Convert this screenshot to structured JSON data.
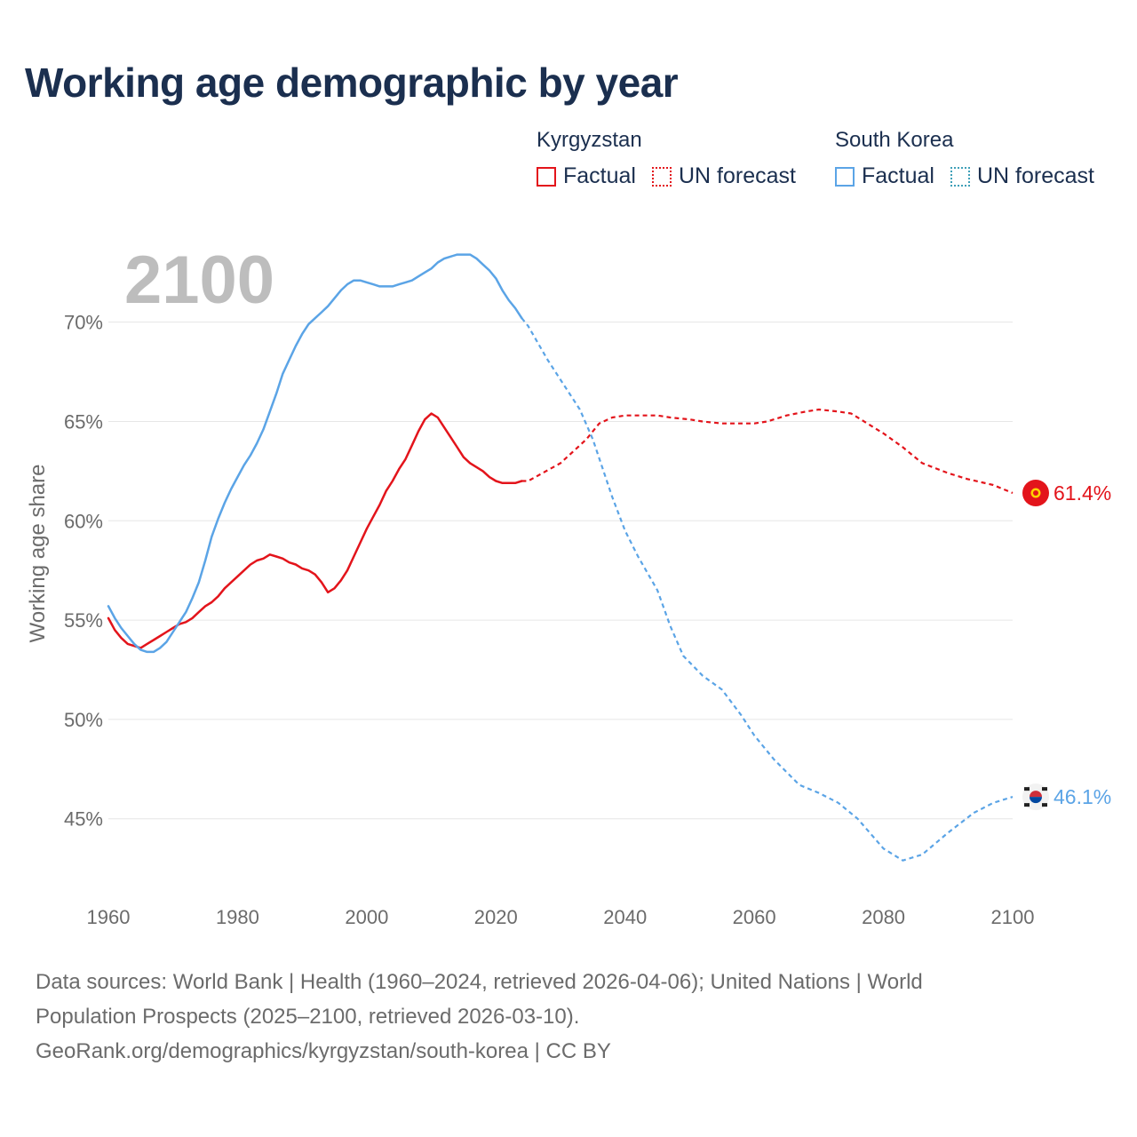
{
  "title": "Working age demographic by year",
  "legend": {
    "groups": [
      {
        "country": "Kyrgyzstan",
        "factual": "Factual",
        "forecast": "UN forecast"
      },
      {
        "country": "South Korea",
        "factual": "Factual",
        "forecast": "UN forecast"
      }
    ]
  },
  "year_watermark": "2100",
  "footer": {
    "line1": "Data sources: World Bank | Health (1960–2024, retrieved 2026-04-06); United Nations | World",
    "line2": "Population Prospects (2025–2100, retrieved 2026-03-10).",
    "line3": "GeoRank.org/demographics/kyrgyzstan/south-korea | CC BY"
  },
  "colors": {
    "kyrgyzstan": "#e3141b",
    "south_korea": "#5ba4e6",
    "grid": "#e6e6e6",
    "axis_text": "#6b6b6b",
    "title": "#1b2f4f"
  },
  "chart_data": {
    "type": "line",
    "title": "Working age demographic by year",
    "xlabel": "",
    "ylabel": "Working age share",
    "xlim": [
      1960,
      2100
    ],
    "ylim": [
      41.5,
      74.5
    ],
    "x_ticks": [
      1960,
      1980,
      2000,
      2020,
      2040,
      2060,
      2080,
      2100
    ],
    "x_tick_labels": [
      "1960",
      "1980",
      "2000",
      "2020",
      "2040",
      "2060",
      "2080",
      "2100"
    ],
    "y_ticks": [
      45,
      50,
      55,
      60,
      65,
      70
    ],
    "y_tick_labels": [
      "45%",
      "50%",
      "55%",
      "60%",
      "65%",
      "70%"
    ],
    "factual_end_year": 2024,
    "series": [
      {
        "name": "Kyrgyzstan",
        "end_label": "61.4%",
        "x": [
          1960,
          1961,
          1962,
          1963,
          1964,
          1965,
          1966,
          1967,
          1968,
          1969,
          1970,
          1971,
          1972,
          1973,
          1974,
          1975,
          1976,
          1977,
          1978,
          1979,
          1980,
          1981,
          1982,
          1983,
          1984,
          1985,
          1986,
          1987,
          1988,
          1989,
          1990,
          1991,
          1992,
          1993,
          1994,
          1995,
          1996,
          1997,
          1998,
          1999,
          2000,
          2001,
          2002,
          2003,
          2004,
          2005,
          2006,
          2007,
          2008,
          2009,
          2010,
          2011,
          2012,
          2013,
          2014,
          2015,
          2016,
          2017,
          2018,
          2019,
          2020,
          2021,
          2022,
          2023,
          2024,
          2025,
          2030,
          2034,
          2036,
          2038,
          2040,
          2045,
          2047,
          2050,
          2052,
          2055,
          2058,
          2060,
          2062,
          2065,
          2068,
          2070,
          2073,
          2075,
          2080,
          2083,
          2086,
          2090,
          2093,
          2097,
          2100
        ],
        "values": [
          55.1,
          54.5,
          54.1,
          53.8,
          53.7,
          53.6,
          53.8,
          54.0,
          54.2,
          54.4,
          54.6,
          54.8,
          54.9,
          55.1,
          55.4,
          55.7,
          55.9,
          56.2,
          56.6,
          56.9,
          57.2,
          57.5,
          57.8,
          58.0,
          58.1,
          58.3,
          58.2,
          58.1,
          57.9,
          57.8,
          57.6,
          57.5,
          57.3,
          56.9,
          56.4,
          56.6,
          57.0,
          57.5,
          58.2,
          58.9,
          59.6,
          60.2,
          60.8,
          61.5,
          62.0,
          62.6,
          63.1,
          63.8,
          64.5,
          65.1,
          65.4,
          65.2,
          64.7,
          64.2,
          63.7,
          63.2,
          62.9,
          62.7,
          62.5,
          62.2,
          62.0,
          61.9,
          61.9,
          61.9,
          62.0,
          62.0,
          62.9,
          64.1,
          64.9,
          65.2,
          65.3,
          65.3,
          65.2,
          65.1,
          65.0,
          64.9,
          64.9,
          64.9,
          65.0,
          65.3,
          65.5,
          65.6,
          65.5,
          65.4,
          64.4,
          63.7,
          62.9,
          62.4,
          62.1,
          61.8,
          61.4
        ]
      },
      {
        "name": "South Korea",
        "end_label": "46.1%",
        "x": [
          1960,
          1961,
          1962,
          1963,
          1964,
          1965,
          1966,
          1967,
          1968,
          1969,
          1970,
          1971,
          1972,
          1973,
          1974,
          1975,
          1976,
          1977,
          1978,
          1979,
          1980,
          1981,
          1982,
          1983,
          1984,
          1985,
          1986,
          1987,
          1988,
          1989,
          1990,
          1991,
          1992,
          1993,
          1994,
          1995,
          1996,
          1997,
          1998,
          1999,
          2000,
          2001,
          2002,
          2003,
          2004,
          2005,
          2006,
          2007,
          2008,
          2009,
          2010,
          2011,
          2012,
          2013,
          2014,
          2015,
          2016,
          2017,
          2018,
          2019,
          2020,
          2021,
          2022,
          2023,
          2024,
          2025,
          2028,
          2030,
          2033,
          2035,
          2038,
          2040,
          2042,
          2045,
          2047,
          2049,
          2052,
          2055,
          2058,
          2060,
          2063,
          2067,
          2070,
          2073,
          2076,
          2080,
          2083,
          2086,
          2090,
          2094,
          2097,
          2100
        ],
        "values": [
          55.7,
          55.1,
          54.6,
          54.2,
          53.8,
          53.5,
          53.4,
          53.4,
          53.6,
          53.9,
          54.4,
          54.9,
          55.4,
          56.1,
          56.9,
          58.0,
          59.2,
          60.1,
          60.9,
          61.6,
          62.2,
          62.8,
          63.3,
          63.9,
          64.6,
          65.5,
          66.4,
          67.4,
          68.1,
          68.8,
          69.4,
          69.9,
          70.2,
          70.5,
          70.8,
          71.2,
          71.6,
          71.9,
          72.1,
          72.1,
          72.0,
          71.9,
          71.8,
          71.8,
          71.8,
          71.9,
          72.0,
          72.1,
          72.3,
          72.5,
          72.7,
          73.0,
          73.2,
          73.3,
          73.4,
          73.4,
          73.4,
          73.2,
          72.9,
          72.6,
          72.2,
          71.6,
          71.1,
          70.7,
          70.2,
          69.8,
          68.1,
          67.1,
          65.6,
          64.1,
          61.2,
          59.5,
          58.2,
          56.5,
          54.7,
          53.2,
          52.2,
          51.5,
          50.2,
          49.2,
          48.0,
          46.7,
          46.3,
          45.8,
          45.0,
          43.5,
          42.9,
          43.2,
          44.3,
          45.3,
          45.8,
          46.1
        ]
      }
    ]
  }
}
